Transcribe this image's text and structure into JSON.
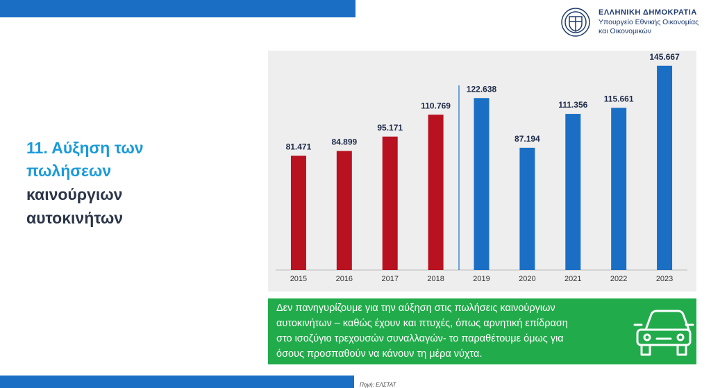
{
  "header": {
    "country": "ΕΛΛΗΝΙΚΗ ΔΗΜΟΚΡΑΤΙΑ",
    "ministry": [
      "Υπουργείο Εθνικής Οικονομίας",
      "και Οικονομικών"
    ]
  },
  "title": [
    "11. Αύξηση των",
    "πωλήσεων",
    "καινούργιων",
    "αυτοκινήτων"
  ],
  "chart_data": {
    "type": "bar",
    "categories": [
      "2015",
      "2016",
      "2017",
      "2018",
      "2019",
      "2020",
      "2021",
      "2022",
      "2023"
    ],
    "values": [
      81471,
      84899,
      95171,
      110769,
      122638,
      87194,
      111356,
      115661,
      145667
    ],
    "value_labels": [
      "81.471",
      "84.899",
      "95.171",
      "110.769",
      "122.638",
      "87.194",
      "111.356",
      "115.661",
      "145.667"
    ],
    "colors": [
      "#b8111f",
      "#b8111f",
      "#b8111f",
      "#b8111f",
      "#1a6fc4",
      "#1a6fc4",
      "#1a6fc4",
      "#1a6fc4",
      "#1a6fc4"
    ],
    "ylim": [
      0,
      150000
    ]
  },
  "note": [
    "Δεν πανηγυρίζουμε για την αύξηση στις πωλήσεις καινούργιων",
    "αυτοκινήτων – καθώς έχουν και πτυχές, όπως αρνητική επίδραση",
    "στο ισοζύγιο τρεχουσών συναλλαγών- το παραθέτουμε όμως για",
    "όσους προσπαθούν να κάνουν τη μέρα νύχτα."
  ],
  "source": "Πηγή: ΕΛΣΤΑΤ"
}
